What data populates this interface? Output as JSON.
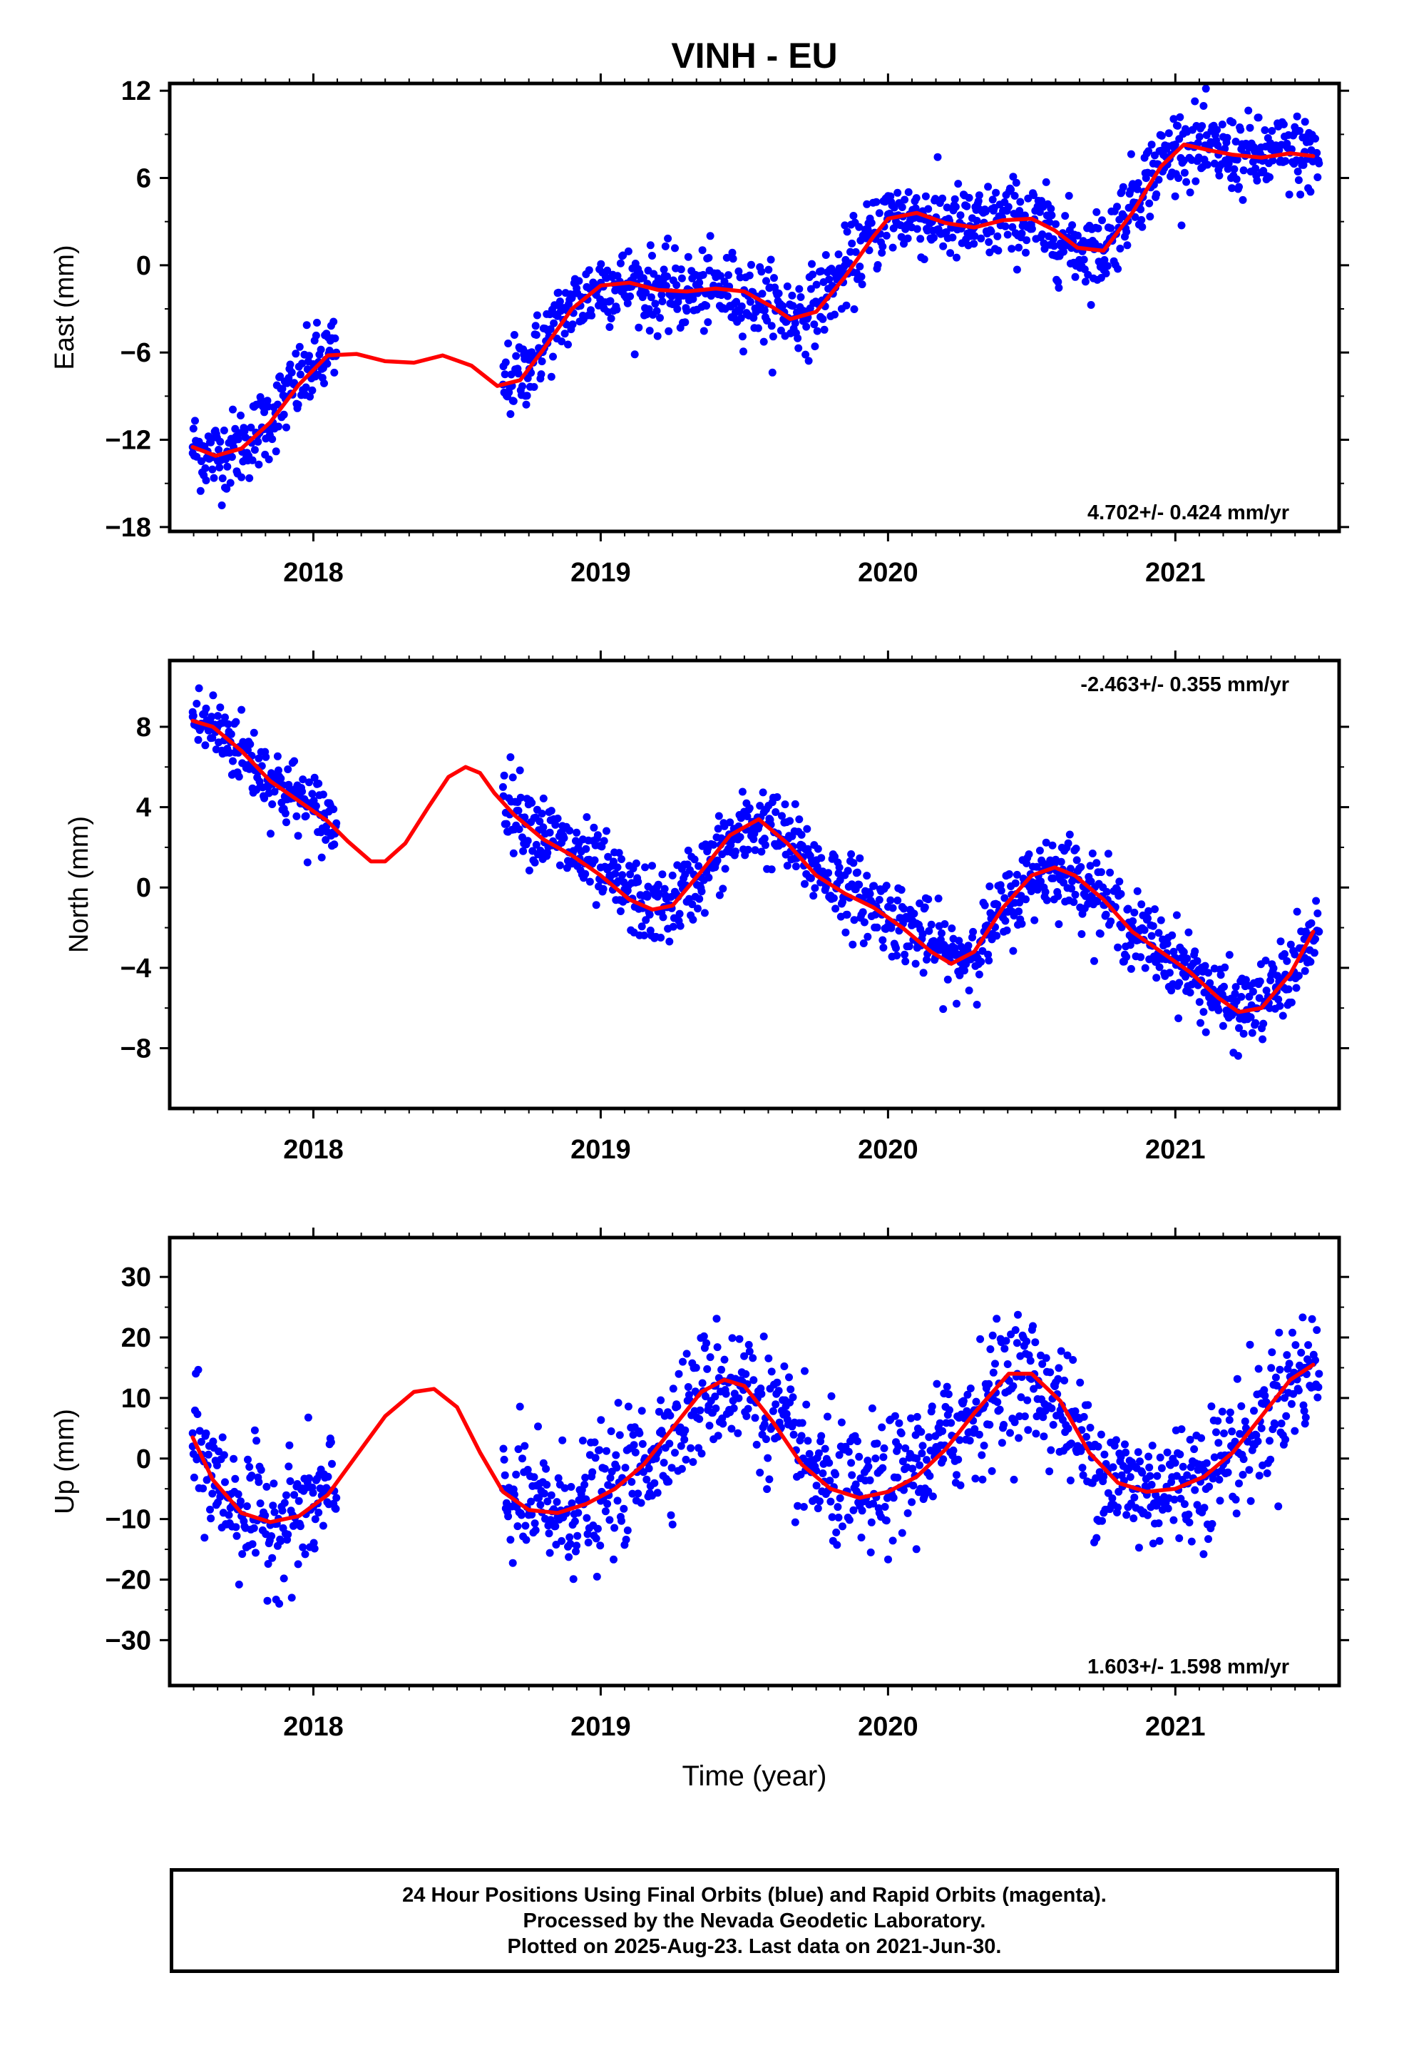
{
  "title": "VINH - EU",
  "colors": {
    "final_orbits": "#0000ff",
    "model_fit": "#ff0000",
    "axes": "#000000"
  },
  "chart_data": [
    {
      "type": "scatter",
      "title": "VINH - EU",
      "ylabel": "East (mm)",
      "xlabel": "",
      "xlim": [
        2017.5,
        2021.57
      ],
      "ylim": [
        -18.3,
        12.5
      ],
      "yticks": [
        -18,
        -12,
        -6,
        0,
        6,
        12
      ],
      "yticklabels": [
        "−18",
        "−12",
        "−6",
        "0",
        "6",
        "12"
      ],
      "xticks": [
        2018,
        2019,
        2020,
        2021
      ],
      "xticklabels": [
        "2018",
        "2019",
        "2020",
        "2021"
      ],
      "rate_label": "4.702+/- 0.424 mm/yr",
      "rate_position": "bottom-right",
      "data_gap": [
        2018.08,
        2018.66
      ],
      "series": [
        {
          "marker": "point",
          "color": "#0000ff",
          "x": [
            2017.58,
            2017.65,
            2017.7,
            2017.8,
            2017.9,
            2018.0,
            2018.08,
            2018.66,
            2018.75,
            2018.85,
            2019.0,
            2019.1,
            2019.25,
            2019.4,
            2019.55,
            2019.7,
            2019.85,
            2020.0,
            2020.15,
            2020.3,
            2020.45,
            2020.6,
            2020.75,
            2020.85,
            2021.0,
            2021.15,
            2021.3,
            2021.45,
            2021.5
          ],
          "y": [
            -12.5,
            -13.2,
            -12.8,
            -11.5,
            -9.0,
            -6.8,
            -6.0,
            -8.2,
            -6.5,
            -3.5,
            -1.2,
            -1.5,
            -2.0,
            -1.8,
            -2.5,
            -3.2,
            0.0,
            3.5,
            3.0,
            2.6,
            3.4,
            1.5,
            1.0,
            5.5,
            8.3,
            7.6,
            7.4,
            7.8,
            7.0
          ]
        },
        {
          "marker": "line",
          "color": "#ff0000",
          "x": [
            2017.58,
            2017.66,
            2017.75,
            2017.85,
            2017.95,
            2018.05,
            2018.15,
            2018.25,
            2018.35,
            2018.45,
            2018.55,
            2018.64,
            2018.72,
            2018.8,
            2018.9,
            2019.0,
            2019.1,
            2019.2,
            2019.3,
            2019.4,
            2019.5,
            2019.6,
            2019.66,
            2019.75,
            2019.85,
            2019.95,
            2020.0,
            2020.1,
            2020.2,
            2020.3,
            2020.4,
            2020.5,
            2020.58,
            2020.66,
            2020.75,
            2020.85,
            2020.95,
            2021.03,
            2021.12,
            2021.2,
            2021.3,
            2021.4,
            2021.48
          ],
          "y": [
            -12.5,
            -13.1,
            -12.6,
            -10.8,
            -8.2,
            -6.2,
            -6.1,
            -6.6,
            -6.7,
            -6.2,
            -6.9,
            -8.3,
            -7.9,
            -5.8,
            -3.0,
            -1.4,
            -1.2,
            -1.7,
            -1.8,
            -1.6,
            -1.8,
            -2.9,
            -3.7,
            -3.2,
            -0.8,
            2.0,
            3.2,
            3.6,
            2.9,
            2.6,
            3.1,
            3.2,
            2.4,
            1.2,
            1.0,
            3.6,
            6.8,
            8.3,
            7.9,
            7.6,
            7.4,
            7.7,
            7.5
          ]
        }
      ]
    },
    {
      "type": "scatter",
      "title": "",
      "ylabel": "North (mm)",
      "xlabel": "",
      "xlim": [
        2017.5,
        2021.57
      ],
      "ylim": [
        -11.0,
        11.3
      ],
      "yticks": [
        -8,
        -4,
        0,
        4,
        8
      ],
      "yticklabels": [
        "−8",
        "−4",
        "0",
        "4",
        "8"
      ],
      "xticks": [
        2018,
        2019,
        2020,
        2021
      ],
      "xticklabels": [
        "2018",
        "2019",
        "2020",
        "2021"
      ],
      "rate_label": "-2.463+/- 0.355 mm/yr",
      "rate_position": "top-right",
      "data_gap": [
        2018.08,
        2018.66
      ],
      "series": [
        {
          "marker": "point",
          "color": "#0000ff",
          "x": [
            2017.58,
            2017.7,
            2017.85,
            2018.0,
            2018.08,
            2018.66,
            2018.8,
            2019.0,
            2019.2,
            2019.35,
            2019.55,
            2019.7,
            2019.9,
            2020.1,
            2020.25,
            2020.4,
            2020.55,
            2020.7,
            2020.85,
            2021.0,
            2021.2,
            2021.35,
            2021.45,
            2021.5
          ],
          "y": [
            8.5,
            7.5,
            5.5,
            3.8,
            3.2,
            5.0,
            3.0,
            1.0,
            -1.2,
            0.5,
            3.3,
            2.0,
            -0.5,
            -1.8,
            -3.5,
            -1.5,
            1.0,
            0.3,
            -2.0,
            -3.5,
            -6.2,
            -5.0,
            -3.5,
            -2.2
          ]
        },
        {
          "marker": "line",
          "color": "#ff0000",
          "x": [
            2017.58,
            2017.65,
            2017.75,
            2017.85,
            2017.95,
            2018.05,
            2018.12,
            2018.2,
            2018.25,
            2018.32,
            2018.4,
            2018.47,
            2018.53,
            2018.58,
            2018.63,
            2018.7,
            2018.8,
            2018.9,
            2019.0,
            2019.1,
            2019.18,
            2019.25,
            2019.35,
            2019.45,
            2019.55,
            2019.65,
            2019.75,
            2019.85,
            2019.95,
            2020.05,
            2020.15,
            2020.22,
            2020.3,
            2020.4,
            2020.5,
            2020.58,
            2020.65,
            2020.75,
            2020.85,
            2020.95,
            2021.05,
            2021.15,
            2021.22,
            2021.3,
            2021.4,
            2021.48
          ],
          "y": [
            8.3,
            8.0,
            6.8,
            5.3,
            4.3,
            3.3,
            2.3,
            1.3,
            1.3,
            2.2,
            4.0,
            5.5,
            6.0,
            5.7,
            4.7,
            3.6,
            2.4,
            1.6,
            0.6,
            -0.6,
            -1.1,
            -0.9,
            0.8,
            2.6,
            3.4,
            2.2,
            0.6,
            -0.3,
            -1.0,
            -2.0,
            -3.2,
            -3.8,
            -3.2,
            -1.0,
            0.6,
            1.0,
            0.6,
            -0.6,
            -2.2,
            -3.2,
            -4.2,
            -5.5,
            -6.2,
            -6.0,
            -4.3,
            -2.2
          ]
        }
      ]
    },
    {
      "type": "scatter",
      "title": "",
      "ylabel": "Up (mm)",
      "xlabel": "Time (year)",
      "xlim": [
        2017.5,
        2021.57
      ],
      "ylim": [
        -37.5,
        36.5
      ],
      "yticks": [
        -30,
        -20,
        -10,
        0,
        10,
        20,
        30
      ],
      "yticklabels": [
        "−30",
        "−20",
        "−10",
        "0",
        "10",
        "20",
        "30"
      ],
      "xticks": [
        2018,
        2019,
        2020,
        2021
      ],
      "xticklabels": [
        "2018",
        "2019",
        "2020",
        "2021"
      ],
      "rate_label": "1.603+/- 1.598 mm/yr",
      "rate_position": "bottom-right",
      "data_gap": [
        2018.08,
        2018.66
      ],
      "series": [
        {
          "marker": "point",
          "color": "#0000ff",
          "x": [
            2017.58,
            2017.7,
            2017.85,
            2018.0,
            2018.08,
            2018.66,
            2018.85,
            2019.0,
            2019.2,
            2019.4,
            2019.55,
            2019.75,
            2019.9,
            2020.1,
            2020.3,
            2020.45,
            2020.6,
            2020.75,
            2020.9,
            2021.1,
            2021.3,
            2021.45,
            2021.5
          ],
          "y": [
            2.0,
            -6.0,
            -11.0,
            -8.0,
            -6.5,
            -5.0,
            -9.0,
            -7.0,
            2.0,
            12.0,
            11.0,
            -2.0,
            -6.0,
            0.0,
            8.0,
            14.0,
            8.0,
            -3.0,
            -5.0,
            -2.0,
            5.0,
            15.0,
            14.0
          ]
        },
        {
          "marker": "line",
          "color": "#ff0000",
          "x": [
            2017.58,
            2017.65,
            2017.75,
            2017.85,
            2017.95,
            2018.05,
            2018.15,
            2018.25,
            2018.35,
            2018.42,
            2018.5,
            2018.58,
            2018.66,
            2018.75,
            2018.85,
            2018.95,
            2019.05,
            2019.15,
            2019.25,
            2019.35,
            2019.43,
            2019.5,
            2019.6,
            2019.7,
            2019.8,
            2019.9,
            2020.0,
            2020.1,
            2020.2,
            2020.3,
            2020.42,
            2020.5,
            2020.6,
            2020.7,
            2020.8,
            2020.9,
            2021.0,
            2021.1,
            2021.2,
            2021.3,
            2021.4,
            2021.48
          ],
          "y": [
            3.5,
            -3.5,
            -9.0,
            -10.5,
            -9.5,
            -6.0,
            0.5,
            7.0,
            11.0,
            11.5,
            8.5,
            1.0,
            -5.5,
            -8.5,
            -9.0,
            -7.5,
            -5.0,
            -1.0,
            5.0,
            11.0,
            13.0,
            12.0,
            6.0,
            -1.0,
            -5.0,
            -6.5,
            -5.5,
            -3.0,
            1.5,
            7.5,
            14.0,
            14.0,
            9.5,
            1.0,
            -4.0,
            -5.5,
            -5.0,
            -3.0,
            1.0,
            7.0,
            13.0,
            15.5
          ]
        }
      ]
    }
  ],
  "footer": {
    "line1": "24 Hour Positions Using Final Orbits (blue) and Rapid Orbits (magenta).",
    "line2": "Processed by the Nevada Geodetic Laboratory.",
    "line3": "Plotted on 2025-Aug-23. Last data on 2021-Jun-30."
  }
}
